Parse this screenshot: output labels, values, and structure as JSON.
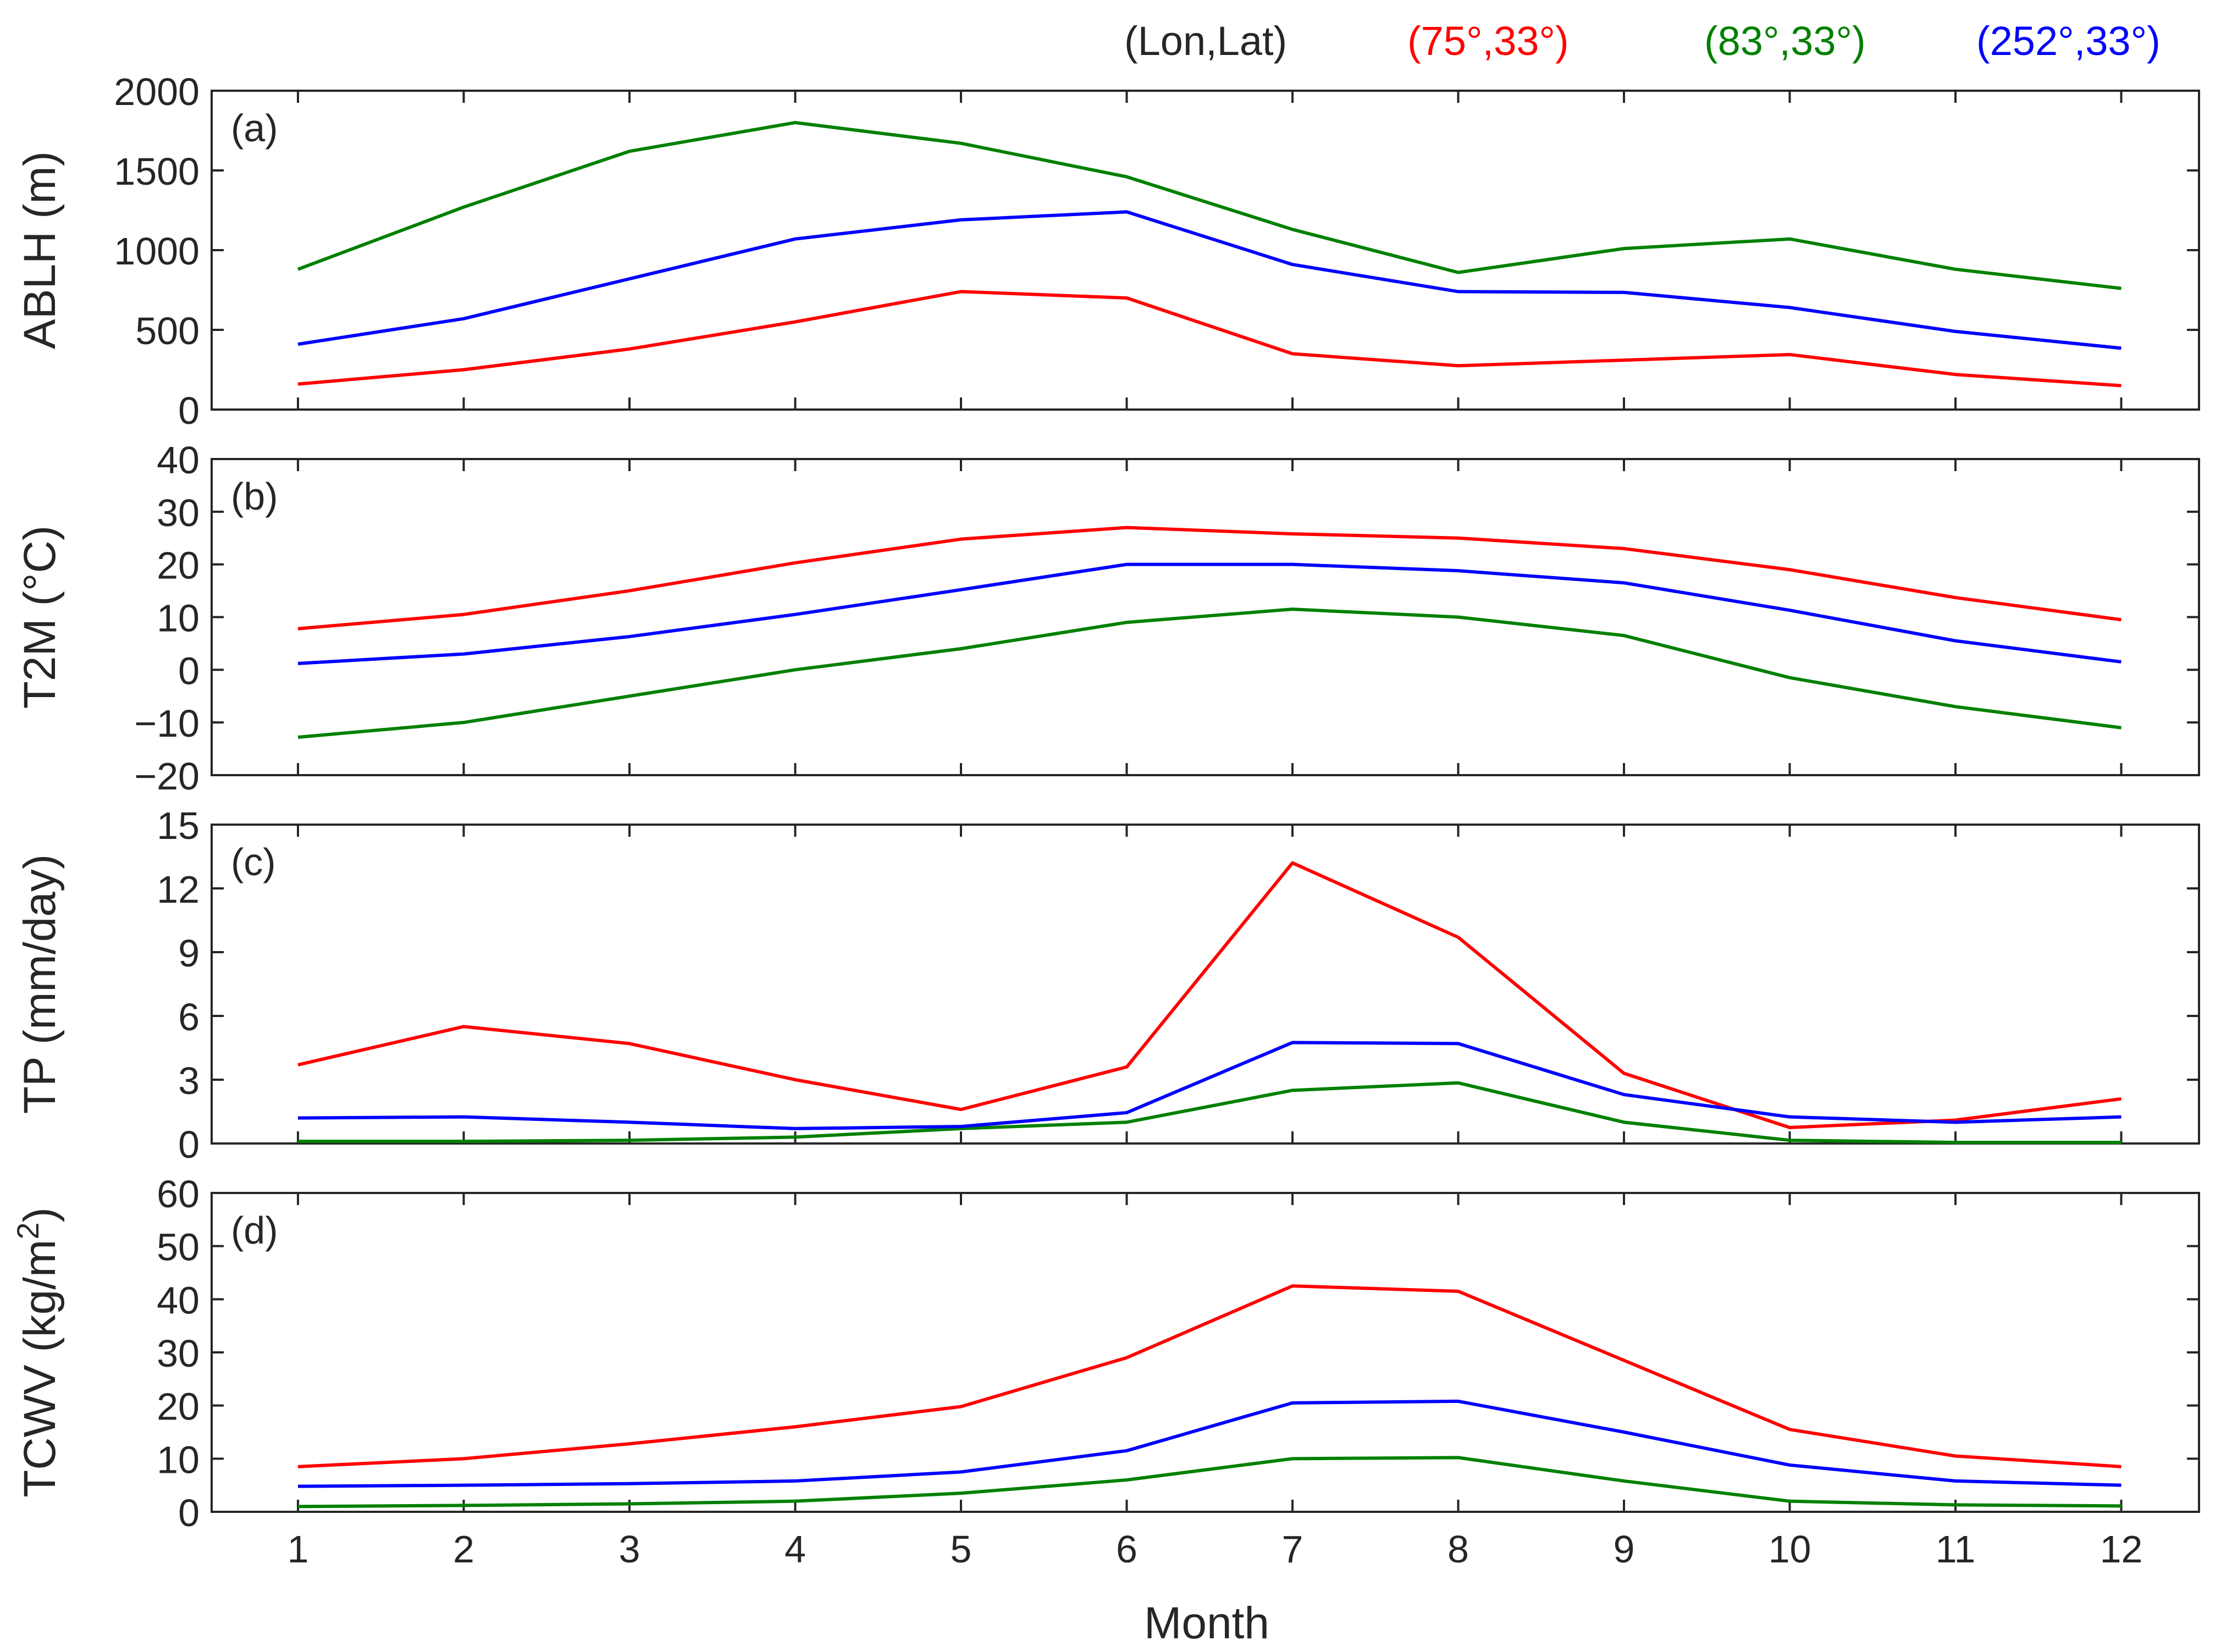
{
  "chart_data": [
    {
      "type": "line",
      "panel_label": "(a)",
      "ylabel": "ABLH (m)",
      "ylim": [
        0,
        2000
      ],
      "yticks": [
        0,
        500,
        1000,
        1500,
        2000
      ],
      "ytick_labels": [
        "0",
        "500",
        "1000",
        "1500",
        "2000"
      ],
      "x": [
        1,
        2,
        3,
        4,
        5,
        6,
        7,
        8,
        9,
        10,
        11,
        12
      ],
      "series": [
        {
          "name": "(75°,33°)",
          "color": "#ff0000",
          "values": [
            160,
            250,
            380,
            550,
            740,
            700,
            350,
            275,
            310,
            345,
            220,
            150
          ]
        },
        {
          "name": "(83°,33°)",
          "color": "#008000",
          "values": [
            880,
            1270,
            1620,
            1800,
            1670,
            1460,
            1130,
            860,
            1010,
            1070,
            880,
            760
          ]
        },
        {
          "name": "(252°,33°)",
          "color": "#0000ff",
          "values": [
            410,
            570,
            820,
            1070,
            1190,
            1240,
            910,
            740,
            735,
            640,
            490,
            385
          ]
        }
      ]
    },
    {
      "type": "line",
      "panel_label": "(b)",
      "ylabel": "T2M (°C)",
      "ylim": [
        -20,
        40
      ],
      "yticks": [
        -20,
        -10,
        0,
        10,
        20,
        30,
        40
      ],
      "ytick_labels": [
        "−20",
        "−10",
        "0",
        "10",
        "20",
        "30",
        "40"
      ],
      "x": [
        1,
        2,
        3,
        4,
        5,
        6,
        7,
        8,
        9,
        10,
        11,
        12
      ],
      "series": [
        {
          "name": "(75°,33°)",
          "color": "#ff0000",
          "values": [
            7.8,
            10.5,
            15.0,
            20.3,
            24.8,
            27.0,
            25.8,
            25.0,
            23.0,
            19.0,
            13.7,
            9.5
          ]
        },
        {
          "name": "(83°,33°)",
          "color": "#008000",
          "values": [
            -12.8,
            -10.0,
            -5.0,
            0.0,
            4.0,
            9.0,
            11.5,
            10.0,
            6.5,
            -1.5,
            -7.0,
            -11.0
          ]
        },
        {
          "name": "(252°,33°)",
          "color": "#0000ff",
          "values": [
            1.2,
            3.0,
            6.3,
            10.5,
            15.2,
            20.0,
            20.0,
            18.8,
            16.5,
            11.3,
            5.5,
            1.5
          ]
        }
      ]
    },
    {
      "type": "line",
      "panel_label": "(c)",
      "ylabel": "TP (mm/day)",
      "ylim": [
        0,
        15
      ],
      "yticks": [
        0,
        3,
        6,
        9,
        12,
        15
      ],
      "ytick_labels": [
        "0",
        "3",
        "6",
        "9",
        "12",
        "15"
      ],
      "x": [
        1,
        2,
        3,
        4,
        5,
        6,
        7,
        8,
        9,
        10,
        11,
        12
      ],
      "series": [
        {
          "name": "(75°,33°)",
          "color": "#ff0000",
          "values": [
            3.7,
            5.5,
            4.7,
            3.0,
            1.6,
            3.6,
            13.2,
            9.7,
            3.3,
            0.75,
            1.1,
            2.1
          ]
        },
        {
          "name": "(83°,33°)",
          "color": "#008000",
          "values": [
            0.1,
            0.1,
            0.15,
            0.3,
            0.7,
            1.0,
            2.5,
            2.85,
            1.0,
            0.15,
            0.05,
            0.05
          ]
        },
        {
          "name": "(252°,33°)",
          "color": "#0000ff",
          "values": [
            1.2,
            1.25,
            1.0,
            0.7,
            0.8,
            1.45,
            4.75,
            4.7,
            2.3,
            1.25,
            1.0,
            1.25
          ]
        }
      ]
    },
    {
      "type": "line",
      "panel_label": "(d)",
      "ylabel": "TCWV (kg/m",
      "ylabel_sup": "2",
      "ylabel_end": ")",
      "ylim": [
        0,
        60
      ],
      "yticks": [
        0,
        10,
        20,
        30,
        40,
        50,
        60
      ],
      "ytick_labels": [
        "0",
        "10",
        "20",
        "30",
        "40",
        "50",
        "60"
      ],
      "x": [
        1,
        2,
        3,
        4,
        5,
        6,
        7,
        8,
        9,
        10,
        11,
        12
      ],
      "xlabel": "Month",
      "xtick_labels": [
        "1",
        "2",
        "3",
        "4",
        "5",
        "6",
        "7",
        "8",
        "9",
        "10",
        "11",
        "12"
      ],
      "series": [
        {
          "name": "(75°,33°)",
          "color": "#ff0000",
          "values": [
            8.5,
            10.0,
            12.8,
            16.0,
            19.8,
            29.0,
            42.5,
            41.5,
            28.5,
            15.5,
            10.5,
            8.5
          ]
        },
        {
          "name": "(83°,33°)",
          "color": "#008000",
          "values": [
            1.0,
            1.2,
            1.5,
            2.0,
            3.5,
            6.0,
            10.0,
            10.2,
            5.8,
            2.0,
            1.3,
            1.1
          ]
        },
        {
          "name": "(252°,33°)",
          "color": "#0000ff",
          "values": [
            4.8,
            5.0,
            5.3,
            5.8,
            7.5,
            11.5,
            20.5,
            20.8,
            15.0,
            8.8,
            5.8,
            5.0
          ]
        }
      ]
    }
  ],
  "legend": {
    "header": "(Lon,Lat)",
    "header_color": "#000000",
    "entries": [
      {
        "label": "(75°,33°)",
        "color": "#ff0000"
      },
      {
        "label": "(83°,33°)",
        "color": "#008000"
      },
      {
        "label": "(252°,33°)",
        "color": "#0000ff"
      }
    ]
  }
}
